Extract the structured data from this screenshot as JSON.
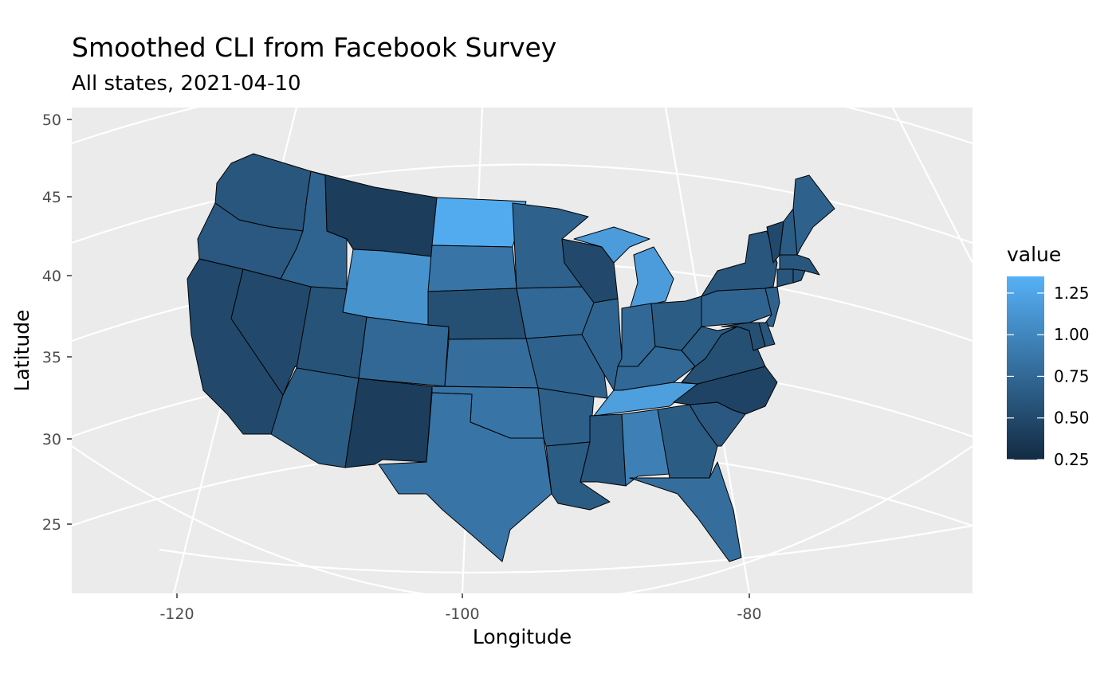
{
  "chart_data": {
    "type": "choropleth-map",
    "title": "Smoothed CLI from Facebook Survey",
    "subtitle": "All states, 2021-04-10",
    "xlabel": "Longitude",
    "ylabel": "Latitude",
    "x_ticks": [
      "-120",
      "-100",
      "-80"
    ],
    "x_tick_values": [
      -120,
      -100,
      -80
    ],
    "y_ticks": [
      "25",
      "30",
      "35",
      "40",
      "45",
      "50"
    ],
    "y_tick_values": [
      25,
      30,
      35,
      40,
      45,
      50
    ],
    "legend": {
      "title": "value",
      "ticks": [
        "0.25",
        "0.50",
        "0.75",
        "1.00",
        "1.25"
      ],
      "tick_values": [
        0.25,
        0.5,
        0.75,
        1.0,
        1.25
      ],
      "range": [
        0.25,
        1.35
      ],
      "low_color": "#132B43",
      "high_color": "#56B1F7"
    },
    "colors": {
      "panel": "#EBEBEB",
      "grid": "#FFFFFF",
      "state_border": "#000000"
    },
    "states": [
      {
        "state": "wa",
        "value": 0.6
      },
      {
        "state": "or",
        "value": 0.62
      },
      {
        "state": "ca",
        "value": 0.5
      },
      {
        "state": "nv",
        "value": 0.5
      },
      {
        "state": "id",
        "value": 0.72
      },
      {
        "state": "mt",
        "value": 0.4
      },
      {
        "state": "wy",
        "value": 1.1
      },
      {
        "state": "ut",
        "value": 0.58
      },
      {
        "state": "az",
        "value": 0.65
      },
      {
        "state": "co",
        "value": 0.75
      },
      {
        "state": "nm",
        "value": 0.4
      },
      {
        "state": "nd",
        "value": 1.3
      },
      {
        "state": "sd",
        "value": 0.85
      },
      {
        "state": "ne",
        "value": 0.55
      },
      {
        "state": "ks",
        "value": 0.8
      },
      {
        "state": "ok",
        "value": 0.85
      },
      {
        "state": "tx",
        "value": 0.85
      },
      {
        "state": "mn",
        "value": 0.7
      },
      {
        "state": "ia",
        "value": 0.75
      },
      {
        "state": "mo",
        "value": 0.7
      },
      {
        "state": "ar",
        "value": 0.68
      },
      {
        "state": "la",
        "value": 0.65
      },
      {
        "state": "wi",
        "value": 0.5
      },
      {
        "state": "il",
        "value": 0.72
      },
      {
        "state": "mi",
        "value": 1.18
      },
      {
        "state": "in",
        "value": 0.75
      },
      {
        "state": "oh",
        "value": 0.65
      },
      {
        "state": "ky",
        "value": 0.75
      },
      {
        "state": "tn",
        "value": 1.2
      },
      {
        "state": "ms",
        "value": 0.6
      },
      {
        "state": "al",
        "value": 0.95
      },
      {
        "state": "ga",
        "value": 0.65
      },
      {
        "state": "fl",
        "value": 0.8
      },
      {
        "state": "sc",
        "value": 0.62
      },
      {
        "state": "nc",
        "value": 0.45
      },
      {
        "state": "va",
        "value": 0.55
      },
      {
        "state": "wv",
        "value": 0.65
      },
      {
        "state": "pa",
        "value": 0.72
      },
      {
        "state": "ny",
        "value": 0.6
      },
      {
        "state": "vt",
        "value": 0.5
      },
      {
        "state": "nh",
        "value": 0.65
      },
      {
        "state": "me",
        "value": 0.7
      },
      {
        "state": "ma",
        "value": 0.6
      },
      {
        "state": "nj",
        "value": 0.7
      },
      {
        "state": "md",
        "value": 0.55
      },
      {
        "state": "de",
        "value": 0.6
      },
      {
        "state": "ct",
        "value": 0.6
      },
      {
        "state": "ri",
        "value": 0.6
      }
    ]
  }
}
